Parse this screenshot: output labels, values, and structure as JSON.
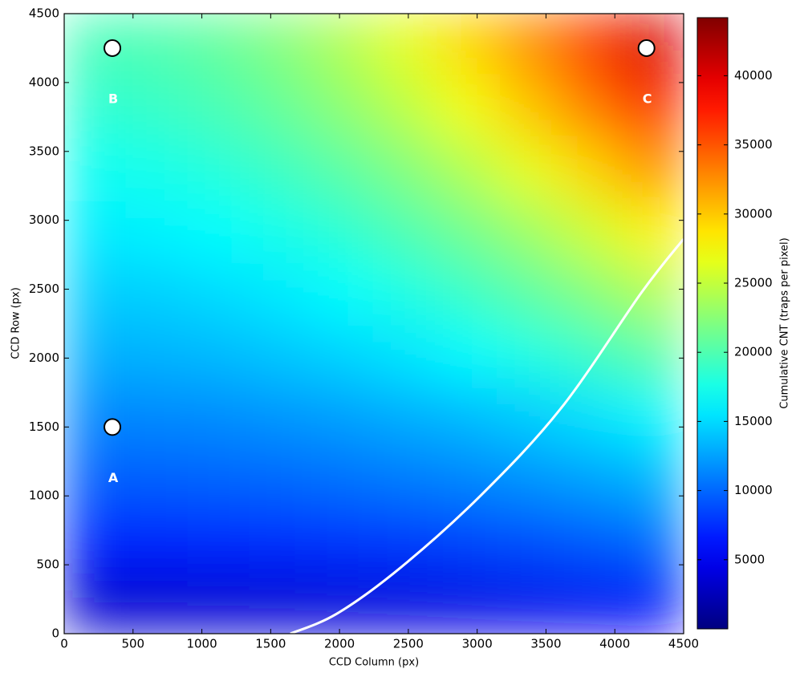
{
  "chart_data": {
    "type": "heatmap",
    "xlabel": "CCD Column (px)",
    "ylabel": "CCD Row (px)",
    "xlim": [
      0,
      4500
    ],
    "ylim": [
      0,
      4500
    ],
    "xticks": [
      0,
      500,
      1000,
      1500,
      2000,
      2500,
      3000,
      3500,
      4000,
      4500
    ],
    "yticks": [
      0,
      500,
      1000,
      1500,
      2000,
      2500,
      3000,
      3500,
      4000,
      4500
    ],
    "x": [
      225,
      675,
      1125,
      1575,
      2025,
      2475,
      2925,
      3375,
      3825,
      4275
    ],
    "y": [
      225,
      675,
      1125,
      1575,
      2025,
      2475,
      2925,
      3375,
      3825,
      4275
    ],
    "z": [
      [
        3500,
        3500,
        3600,
        3700,
        3900,
        4100,
        4300,
        4600,
        4900,
        5300
      ],
      [
        7000,
        7100,
        7200,
        7400,
        7700,
        8000,
        8400,
        8900,
        9400,
        10000
      ],
      [
        9500,
        9600,
        9800,
        10000,
        10400,
        10800,
        11300,
        11900,
        12500,
        13300
      ],
      [
        11300,
        11400,
        11600,
        12000,
        12400,
        13000,
        13600,
        14400,
        15300,
        16300
      ],
      [
        13100,
        13300,
        13600,
        14100,
        14700,
        15500,
        16500,
        17700,
        19000,
        20400
      ],
      [
        14400,
        14600,
        15100,
        15700,
        16600,
        17700,
        19000,
        20500,
        22300,
        24200
      ],
      [
        15800,
        16100,
        16600,
        17500,
        18500,
        19900,
        21500,
        23400,
        25600,
        28000
      ],
      [
        17100,
        17500,
        18200,
        19200,
        20500,
        22200,
        24300,
        26700,
        29400,
        32400
      ],
      [
        18500,
        19000,
        19800,
        21000,
        22700,
        24700,
        27200,
        30100,
        33400,
        37100
      ],
      [
        19600,
        20000,
        20900,
        22300,
        24200,
        26500,
        29300,
        32500,
        36200,
        40300
      ]
    ],
    "colormap": "jet",
    "clim": [
      0,
      44200
    ],
    "colorbar_label": "Cumulative CNT (traps per pixel)",
    "colorbar_ticks": [
      5000,
      10000,
      15000,
      20000,
      25000,
      30000,
      35000,
      40000
    ],
    "points": [
      {
        "label": "A",
        "x": 350,
        "y": 1500
      },
      {
        "label": "B",
        "x": 350,
        "y": 4250
      },
      {
        "label": "C",
        "x": 4230,
        "y": 4250
      }
    ],
    "curve": {
      "color": "#ffffff",
      "x": [
        1643,
        1981,
        2448,
        3030,
        3613,
        4196,
        4499
      ],
      "y": [
        0,
        145,
        483,
        1007,
        1641,
        2479,
        2864
      ]
    }
  }
}
